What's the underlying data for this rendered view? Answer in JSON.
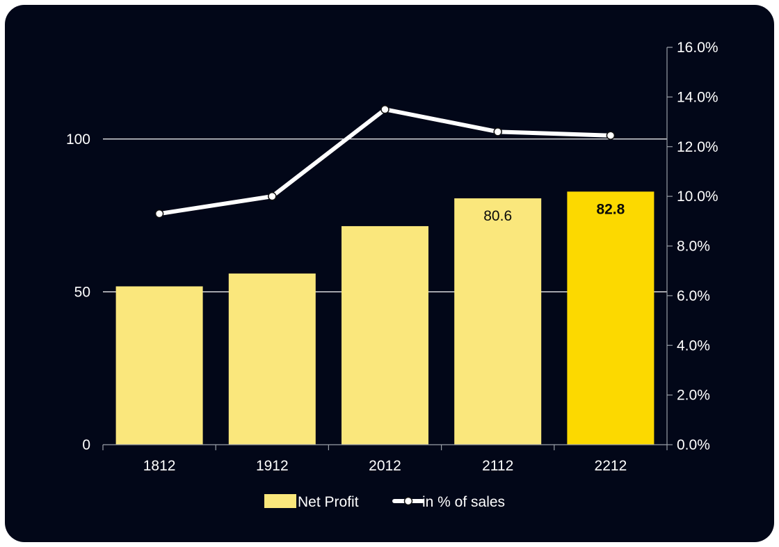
{
  "chart_data": {
    "type": "bar",
    "categories": [
      "1812",
      "1912",
      "2012",
      "2112",
      "2212"
    ],
    "series": [
      {
        "name": "Net Profit",
        "type": "bar",
        "axis": "left",
        "values": [
          51.8,
          56.0,
          71.5,
          80.6,
          82.8
        ],
        "highlight_index": 4,
        "data_labels": [
          "",
          "",
          "",
          "80.6",
          "82.8"
        ]
      },
      {
        "name": "in % of sales",
        "type": "line",
        "axis": "right",
        "values": [
          9.3,
          10.0,
          13.5,
          12.6,
          12.45
        ]
      }
    ],
    "y_left": {
      "ylim": [
        0,
        100
      ],
      "ticks": [
        0,
        50,
        100
      ],
      "tick_labels": [
        "0",
        "50",
        "100"
      ]
    },
    "y_right": {
      "ylim": [
        0,
        16
      ],
      "ticks": [
        0,
        2,
        4,
        6,
        8,
        10,
        12,
        14,
        16
      ],
      "tick_labels": [
        "0.0%",
        "2.0%",
        "4.0%",
        "6.0%",
        "8.0%",
        "10.0%",
        "12.0%",
        "14.0%",
        "16.0%"
      ]
    },
    "grid": "horizontal at left-axis major ticks",
    "legend_position": "bottom",
    "colors": {
      "background": "#020718",
      "bar": "#fae77c",
      "bar_highlight": "#fcd900",
      "line": "#ffffff",
      "marker_fill": "#ffffff",
      "marker_stroke": "#111111",
      "text": "#ffffff",
      "axis": "#9aa0a8",
      "data_label": "#0a0a0a"
    }
  }
}
